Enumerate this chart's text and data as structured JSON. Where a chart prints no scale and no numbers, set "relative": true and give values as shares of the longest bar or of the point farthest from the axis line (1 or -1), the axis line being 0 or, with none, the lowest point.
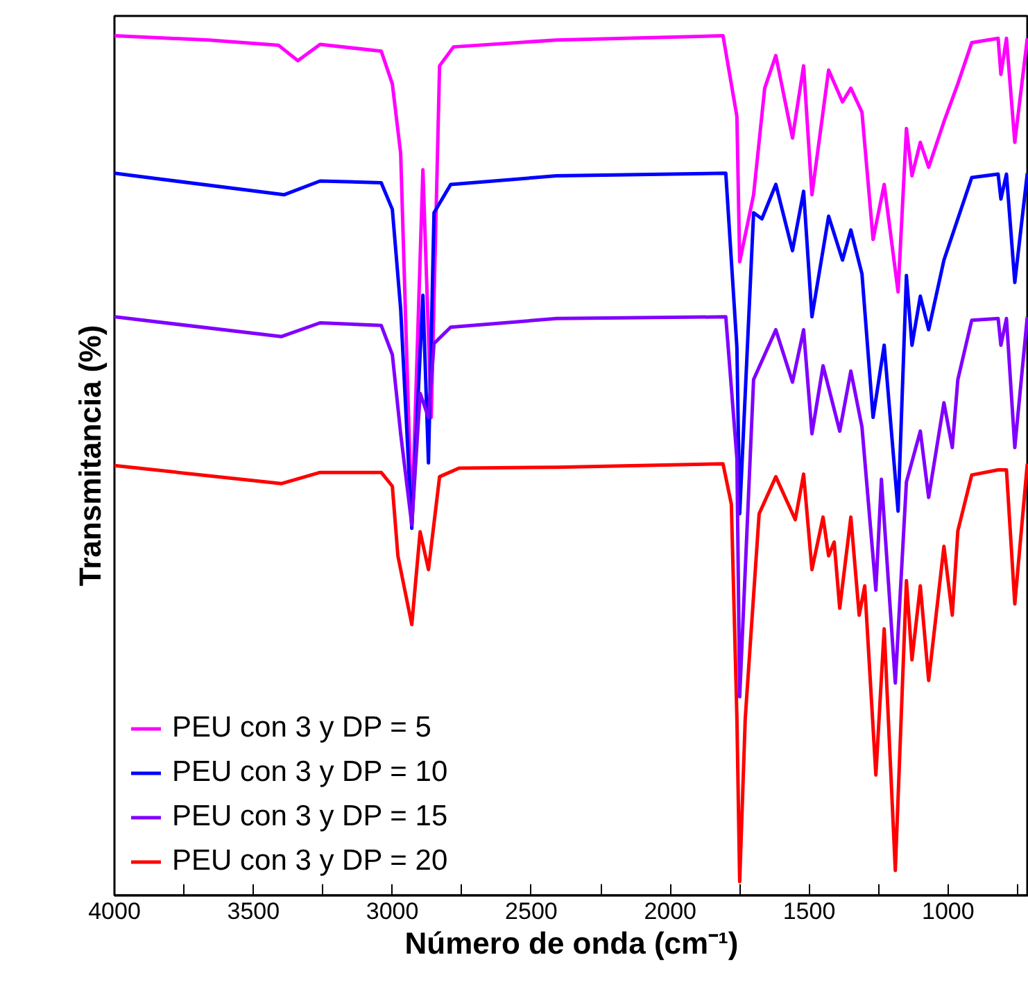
{
  "chart_data": {
    "type": "line",
    "relative": true,
    "xlabel": "Número de onda (cm⁻¹)",
    "ylabel": "Transmitancia (%)",
    "xlim": [
      4000,
      710
    ],
    "xticks": [
      4000,
      {
        "value": 3750,
        "label": null
      },
      3500,
      {
        "value": 3250,
        "label": null
      },
      3000,
      {
        "value": 2750,
        "label": null
      },
      2500,
      {
        "value": 2250,
        "label": null
      },
      2000,
      {
        "value": 1750,
        "label": null
      },
      1500,
      {
        "value": 1250,
        "label": null
      },
      1000,
      {
        "value": 750,
        "label": null
      }
    ],
    "tick_labels": "x",
    "grid": false,
    "legend": "bottom left",
    "marker": "none",
    "line_style": "solid",
    "series": [
      {
        "name": "PEU con 3 y DP = 5",
        "color": "#ff00ff",
        "x": [
          4000,
          3660,
          3410,
          3340,
          3260,
          3040,
          3000,
          2970,
          2930,
          2890,
          2860,
          2830,
          2780,
          2410,
          1810,
          1760,
          1750,
          1700,
          1660,
          1620,
          1560,
          1520,
          1490,
          1430,
          1380,
          1350,
          1310,
          1270,
          1230,
          1180,
          1150,
          1130,
          1100,
          1070,
          1015,
          965,
          915,
          820,
          810,
          790,
          760,
          715
        ],
        "values": [
          1.0,
          0.995,
          0.989,
          0.971,
          0.99,
          0.982,
          0.944,
          0.863,
          0.432,
          0.844,
          0.556,
          0.965,
          0.987,
          0.995,
          1.0,
          0.906,
          0.737,
          0.815,
          0.939,
          0.977,
          0.881,
          0.965,
          0.815,
          0.96,
          0.923,
          0.939,
          0.911,
          0.763,
          0.827,
          0.702,
          0.892,
          0.837,
          0.876,
          0.847,
          0.9,
          0.944,
          0.992,
          0.997,
          0.955,
          0.997,
          0.876,
          0.997
        ]
      },
      {
        "name": "PEU con 3 y DP = 10",
        "color": "#0000ff",
        "x": [
          4000,
          3390,
          3260,
          3040,
          3000,
          2970,
          2930,
          2890,
          2870,
          2850,
          2790,
          2410,
          1800,
          1760,
          1750,
          1700,
          1670,
          1620,
          1560,
          1520,
          1490,
          1430,
          1380,
          1350,
          1310,
          1270,
          1230,
          1180,
          1150,
          1130,
          1100,
          1070,
          1015,
          965,
          915,
          820,
          810,
          790,
          760,
          715
        ],
        "values": [
          0.84,
          0.815,
          0.831,
          0.829,
          0.798,
          0.682,
          0.427,
          0.698,
          0.503,
          0.794,
          0.827,
          0.837,
          0.84,
          0.637,
          0.444,
          0.794,
          0.787,
          0.827,
          0.75,
          0.819,
          0.673,
          0.79,
          0.739,
          0.774,
          0.723,
          0.556,
          0.64,
          0.447,
          0.721,
          0.64,
          0.697,
          0.658,
          0.739,
          0.787,
          0.835,
          0.839,
          0.81,
          0.839,
          0.713,
          0.84
        ]
      },
      {
        "name": "PEU con 3 y DP = 15",
        "color": "#8000ff",
        "x": [
          4000,
          3400,
          3260,
          3040,
          3000,
          2970,
          2930,
          2900,
          2870,
          2850,
          2790,
          2410,
          1800,
          1760,
          1750,
          1700,
          1620,
          1560,
          1520,
          1490,
          1450,
          1390,
          1350,
          1310,
          1260,
          1240,
          1190,
          1150,
          1100,
          1070,
          1015,
          985,
          965,
          915,
          820,
          810,
          790,
          760,
          715
        ],
        "values": [
          0.673,
          0.65,
          0.666,
          0.663,
          0.629,
          0.537,
          0.431,
          0.584,
          0.556,
          0.642,
          0.661,
          0.671,
          0.673,
          0.508,
          0.231,
          0.6,
          0.658,
          0.597,
          0.658,
          0.537,
          0.616,
          0.54,
          0.61,
          0.545,
          0.355,
          0.484,
          0.247,
          0.481,
          0.54,
          0.463,
          0.573,
          0.521,
          0.6,
          0.669,
          0.671,
          0.64,
          0.671,
          0.521,
          0.673
        ]
      },
      {
        "name": "PEU con 3 y DP = 20",
        "color": "#ff0000",
        "x": [
          4000,
          3400,
          3260,
          3040,
          3000,
          2980,
          2930,
          2900,
          2870,
          2830,
          2760,
          2410,
          1810,
          1780,
          1760,
          1750,
          1730,
          1680,
          1620,
          1550,
          1520,
          1490,
          1450,
          1430,
          1410,
          1390,
          1350,
          1320,
          1300,
          1260,
          1230,
          1190,
          1150,
          1130,
          1100,
          1070,
          1015,
          985,
          965,
          915,
          820,
          790,
          760,
          715
        ],
        "values": [
          0.5,
          0.479,
          0.492,
          0.492,
          0.476,
          0.395,
          0.315,
          0.423,
          0.379,
          0.487,
          0.497,
          0.498,
          0.502,
          0.455,
          0.206,
          0.016,
          0.206,
          0.444,
          0.487,
          0.437,
          0.49,
          0.379,
          0.44,
          0.395,
          0.411,
          0.334,
          0.44,
          0.326,
          0.36,
          0.14,
          0.31,
          0.029,
          0.366,
          0.274,
          0.36,
          0.25,
          0.406,
          0.326,
          0.424,
          0.489,
          0.495,
          0.495,
          0.339,
          0.502
        ]
      }
    ]
  }
}
